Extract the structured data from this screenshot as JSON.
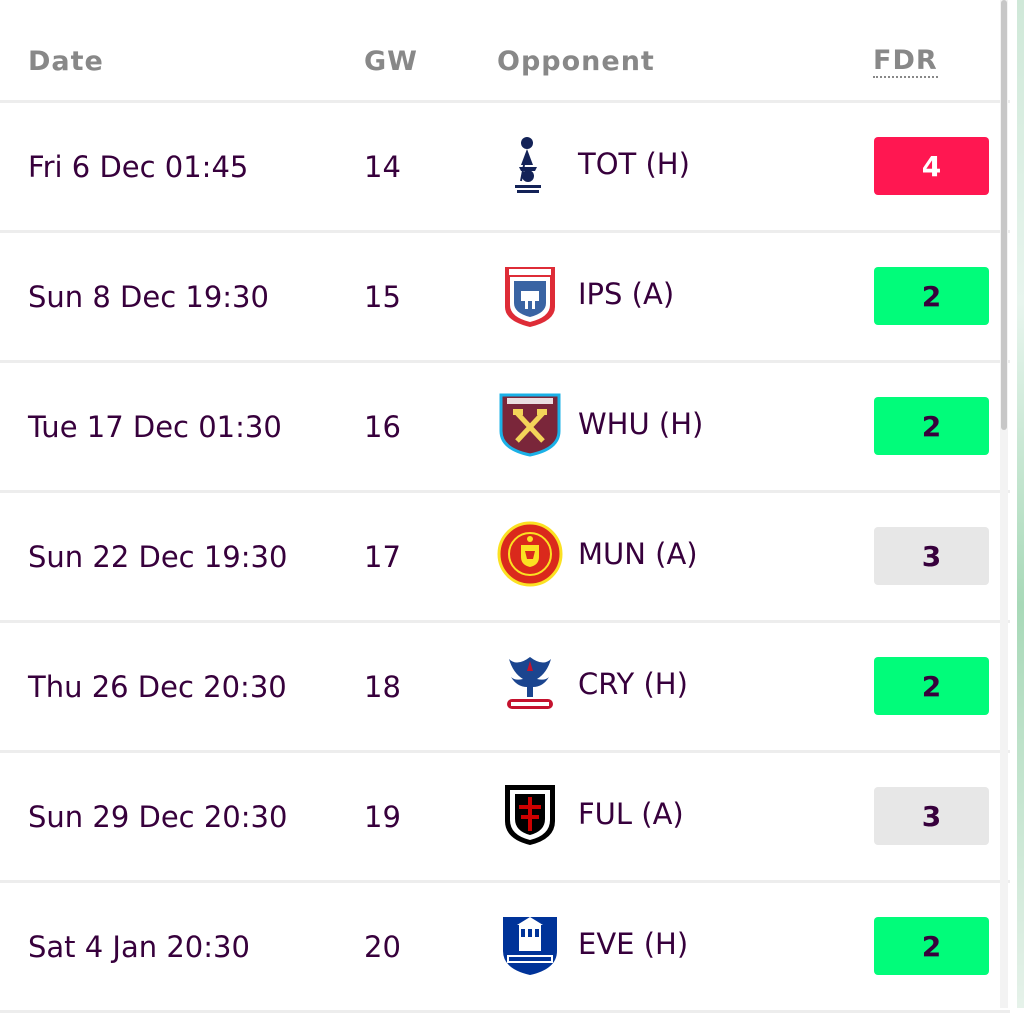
{
  "header": {
    "date": "Date",
    "gw": "GW",
    "opponent": "Opponent",
    "fdr": "FDR"
  },
  "fixtures": [
    {
      "date": "Fri 6 Dec 01:45",
      "gw": "14",
      "opponent": "TOT (H)",
      "crest": "tottenham-crest-icon",
      "fdr": "4",
      "fdr_color": "#ff1751",
      "fdr_text": "#ffffff"
    },
    {
      "date": "Sun 8 Dec 19:30",
      "gw": "15",
      "opponent": "IPS (A)",
      "crest": "ipswich-crest-icon",
      "fdr": "2",
      "fdr_color": "#01fc7a",
      "fdr_text": "#37003c"
    },
    {
      "date": "Tue 17 Dec 01:30",
      "gw": "16",
      "opponent": "WHU (H)",
      "crest": "west-ham-crest-icon",
      "fdr": "2",
      "fdr_color": "#01fc7a",
      "fdr_text": "#37003c"
    },
    {
      "date": "Sun 22 Dec 19:30",
      "gw": "17",
      "opponent": "MUN (A)",
      "crest": "man-utd-crest-icon",
      "fdr": "3",
      "fdr_color": "#e7e7e7",
      "fdr_text": "#37003c"
    },
    {
      "date": "Thu 26 Dec 20:30",
      "gw": "18",
      "opponent": "CRY (H)",
      "crest": "crystal-palace-crest-icon",
      "fdr": "2",
      "fdr_color": "#01fc7a",
      "fdr_text": "#37003c"
    },
    {
      "date": "Sun 29 Dec 20:30",
      "gw": "19",
      "opponent": "FUL (A)",
      "crest": "fulham-crest-icon",
      "fdr": "3",
      "fdr_color": "#e7e7e7",
      "fdr_text": "#37003c"
    },
    {
      "date": "Sat 4 Jan 20:30",
      "gw": "20",
      "opponent": "EVE (H)",
      "crest": "everton-crest-icon",
      "fdr": "2",
      "fdr_color": "#01fc7a",
      "fdr_text": "#37003c"
    }
  ]
}
